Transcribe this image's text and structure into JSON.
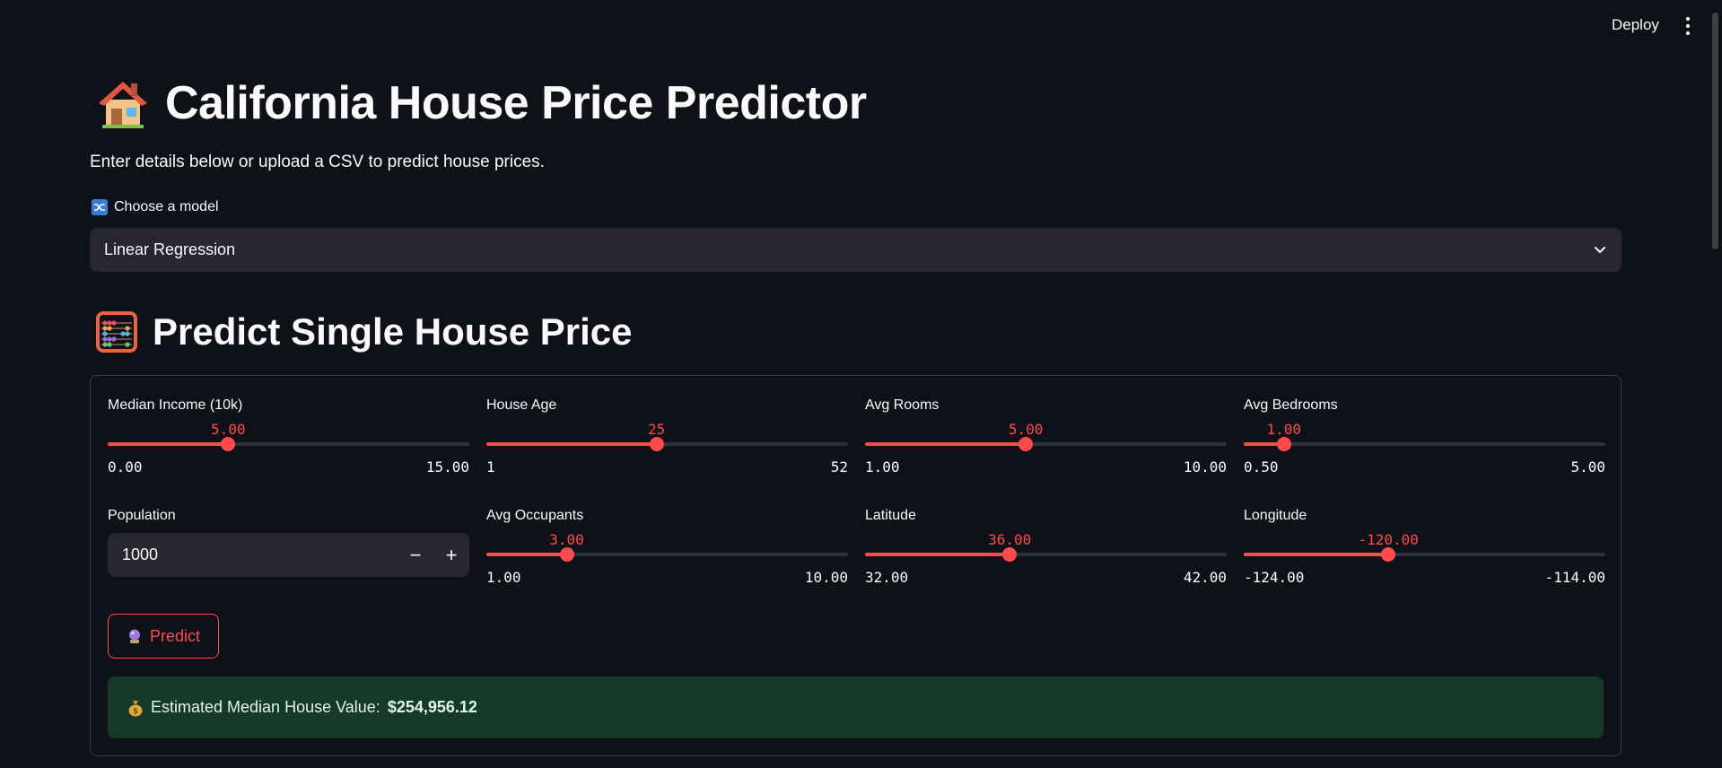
{
  "topbar": {
    "deploy_label": "Deploy"
  },
  "page": {
    "title": "California House Price Predictor",
    "subtitle": "Enter details below or upload a CSV to predict house prices."
  },
  "model": {
    "label": "Choose a model",
    "selected": "Linear Regression"
  },
  "single": {
    "heading": "Predict Single House Price",
    "sliders": [
      {
        "label": "Median Income (10k)",
        "value": "5.00",
        "min": "0.00",
        "max": "15.00",
        "fraction": 0.3333
      },
      {
        "label": "House Age",
        "value": "25",
        "min": "1",
        "max": "52",
        "fraction": 0.4706
      },
      {
        "label": "Avg Rooms",
        "value": "5.00",
        "min": "1.00",
        "max": "10.00",
        "fraction": 0.4444
      },
      {
        "label": "Avg Bedrooms",
        "value": "1.00",
        "min": "0.50",
        "max": "5.00",
        "fraction": 0.1111
      },
      {
        "label": "Avg Occupants",
        "value": "3.00",
        "min": "1.00",
        "max": "10.00",
        "fraction": 0.2222
      },
      {
        "label": "Latitude",
        "value": "36.00",
        "min": "32.00",
        "max": "42.00",
        "fraction": 0.4
      },
      {
        "label": "Longitude",
        "value": "-120.00",
        "min": "-124.00",
        "max": "-114.00",
        "fraction": 0.4
      }
    ],
    "population": {
      "label": "Population",
      "value": "1000",
      "minus": "−",
      "plus": "+"
    },
    "predict_label": "Predict",
    "result_prefix": "Estimated Median House Value:",
    "result_value": "$254,956.12"
  },
  "colors": {
    "accent": "#ff4b4b",
    "background": "#0e1117",
    "input_bg": "#262730",
    "success_bg": "#173928"
  },
  "icons": [
    "house-icon",
    "shuffle-icon",
    "abacus-icon",
    "crystal-ball-icon",
    "money-bag-icon",
    "chevron-down-icon",
    "more-vert-icon"
  ]
}
